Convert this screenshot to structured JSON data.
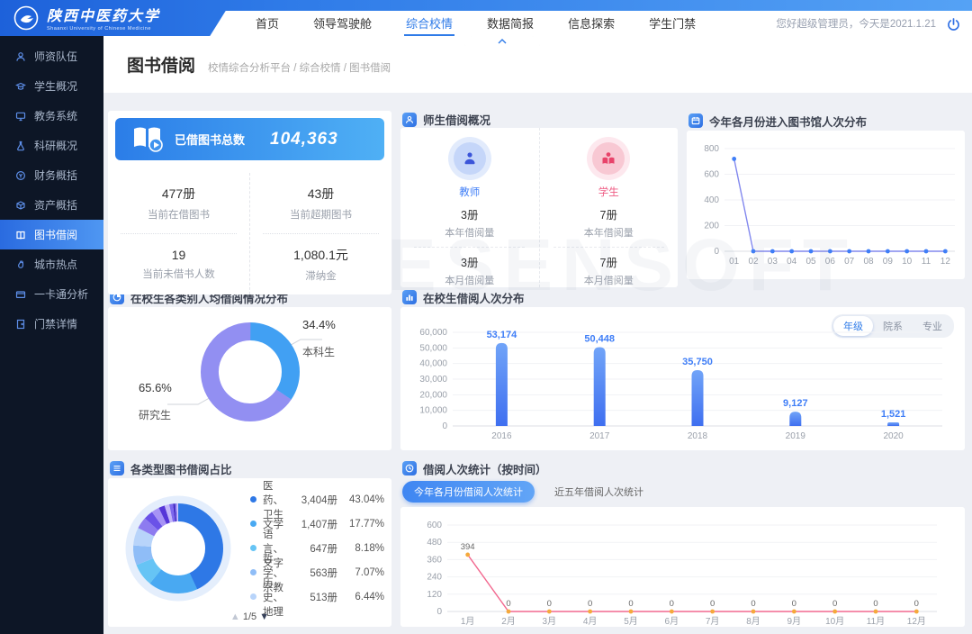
{
  "app": {
    "watermark": "ESENSOFT"
  },
  "header": {
    "logo": {
      "name_cn": "陕西中医药大学",
      "name_en": "Shaanxi University of Chinese Medicine"
    },
    "nav": [
      {
        "label": "首页",
        "active": false
      },
      {
        "label": "领导驾驶舱",
        "active": false
      },
      {
        "label": "综合校情",
        "active": true
      },
      {
        "label": "数据简报",
        "active": false
      },
      {
        "label": "信息探索",
        "active": false
      },
      {
        "label": "学生门禁",
        "active": false
      }
    ],
    "greeting": "您好超级管理员，今天是2021.1.21"
  },
  "sidebar": {
    "items": [
      {
        "label": "师资队伍",
        "icon": "teacher-icon",
        "active": false
      },
      {
        "label": "学生概况",
        "icon": "student-icon",
        "active": false
      },
      {
        "label": "教务系统",
        "icon": "monitor-icon",
        "active": false
      },
      {
        "label": "科研概况",
        "icon": "flask-icon",
        "active": false
      },
      {
        "label": "财务概括",
        "icon": "coin-icon",
        "active": false
      },
      {
        "label": "资产概括",
        "icon": "box-icon",
        "active": false
      },
      {
        "label": "图书借阅",
        "icon": "book-icon",
        "active": true
      },
      {
        "label": "城市热点",
        "icon": "flame-icon",
        "active": false
      },
      {
        "label": "一卡通分析",
        "icon": "card-icon",
        "active": false
      },
      {
        "label": "门禁详情",
        "icon": "door-icon",
        "active": false
      }
    ]
  },
  "page": {
    "title": "图书借阅",
    "breadcrumb": "校情综合分析平台 / 综合校情 / 图书借阅"
  },
  "summary": {
    "banner": {
      "label": "已借图书总数",
      "value": "104,363"
    },
    "stats": [
      {
        "value": "477册",
        "label": "当前在借图书"
      },
      {
        "value": "43册",
        "label": "当前超期图书"
      },
      {
        "value": "19",
        "label": "当前未借书人数"
      },
      {
        "value": "1,080.1元",
        "label": "滞纳金"
      }
    ]
  },
  "teacher_student": {
    "title": "师生借阅概况",
    "groups": [
      {
        "name": "教师",
        "year_value": "3册",
        "year_label": "本年借阅量",
        "month_value": "3册",
        "month_label": "本月借阅量"
      },
      {
        "name": "学生",
        "year_value": "7册",
        "year_label": "本年借阅量",
        "month_value": "7册",
        "month_label": "本月借阅量"
      }
    ]
  },
  "cards": {
    "entries_title": "今年各月份进入图书馆人次分布",
    "per_capita_title": "在校生各类别人均借阅情况分布",
    "grade_title": "在校生借阅人次分布",
    "book_type_title": "各类型图书借阅占比",
    "book_type_pagination": "1/5",
    "time_title": "借阅人次统计（按时间）"
  },
  "colors": {
    "accent": "#2f7be8",
    "banner_from": "#2b7de8",
    "banner_to": "#4fb0f5",
    "teacher": "#3f7ef7",
    "student": "#ef5c84"
  },
  "chart_data": [
    {
      "id": "library-entries",
      "type": "line",
      "title": "今年各月份进入图书馆人次分布",
      "categories": [
        "01",
        "02",
        "03",
        "04",
        "05",
        "06",
        "07",
        "08",
        "09",
        "10",
        "11",
        "12"
      ],
      "values": [
        720,
        0,
        0,
        0,
        0,
        0,
        0,
        0,
        0,
        0,
        0,
        0
      ],
      "yticks": [
        0,
        200,
        400,
        600,
        800
      ],
      "ylim": [
        0,
        800
      ],
      "line_color": "#8288ee",
      "dot_color": "#3f7ef7",
      "point_labels": false
    },
    {
      "id": "per-capita-borrow",
      "type": "pie",
      "title": "在校生各类别人均借阅情况分布",
      "labels": [
        "本科生",
        "研究生"
      ],
      "values": [
        34.4,
        65.6
      ],
      "display": [
        {
          "pct": "34.4%",
          "name": "本科生"
        },
        {
          "pct": "65.6%",
          "name": "研究生"
        }
      ],
      "colors": [
        "#41a0f3",
        "#928ff2"
      ]
    },
    {
      "id": "student-borrow-by-grade",
      "type": "bar",
      "title": "在校生借阅人次分布",
      "tabs": [
        "年级",
        "院系",
        "专业"
      ],
      "active_tab": "年级",
      "categories": [
        "2016",
        "2017",
        "2018",
        "2019",
        "2020"
      ],
      "values": [
        53174,
        50448,
        35750,
        9127,
        1521
      ],
      "labels": [
        "53,174",
        "50,448",
        "35,750",
        "9,127",
        "1,521"
      ],
      "yticks": [
        0,
        10000,
        20000,
        30000,
        40000,
        50000,
        60000
      ],
      "ylim": [
        0,
        60000
      ],
      "bar_color_top": "#71a4f8",
      "bar_color_bottom": "#3f6ff0"
    },
    {
      "id": "book-type-share",
      "type": "pie",
      "title": "各类型图书借阅占比",
      "legend": [
        {
          "name": "医药、卫生",
          "count": "3,404册",
          "pct": "43.04%",
          "color": "#2e78e6"
        },
        {
          "name": "文学",
          "count": "1,407册",
          "pct": "17.77%",
          "color": "#49a9f2"
        },
        {
          "name": "语言、文字",
          "count": "647册",
          "pct": "8.18%",
          "color": "#66c4f5"
        },
        {
          "name": "哲学、宗教",
          "count": "563册",
          "pct": "7.07%",
          "color": "#8fbdf7"
        },
        {
          "name": "历史、地理",
          "count": "513册",
          "pct": "6.44%",
          "color": "#b8d4fa"
        }
      ],
      "slices": {
        "values": [
          43.04,
          17.77,
          8.18,
          7.07,
          6.44,
          4.2,
          3.4,
          2.8,
          2.2,
          1.7,
          1.3,
          0.9,
          0.6,
          0.4
        ],
        "colors": [
          "#2e78e6",
          "#49a9f2",
          "#66c4f5",
          "#8fbdf7",
          "#b8d4fa",
          "#8d7bf0",
          "#6a52e8",
          "#a793f5",
          "#5636d8",
          "#c3b6f9",
          "#7d68ee",
          "#4930c8",
          "#9583f2",
          "#d4cbfb"
        ]
      },
      "pagination": "1/5"
    },
    {
      "id": "borrow-by-time",
      "type": "line",
      "title": "借阅人次统计（按时间）",
      "buttons": [
        {
          "label": "今年各月份借阅人次统计",
          "active": true
        },
        {
          "label": "近五年借阅人次统计",
          "active": false
        }
      ],
      "categories": [
        "1月",
        "2月",
        "3月",
        "4月",
        "5月",
        "6月",
        "7月",
        "8月",
        "9月",
        "10月",
        "11月",
        "12月"
      ],
      "values": [
        394,
        0,
        0,
        0,
        0,
        0,
        0,
        0,
        0,
        0,
        0,
        0
      ],
      "yticks": [
        0,
        120,
        240,
        360,
        480,
        600
      ],
      "ylim": [
        0,
        600
      ],
      "line_color": "#f2688f",
      "dot_color": "#f5a93c",
      "point_labels": true
    }
  ]
}
